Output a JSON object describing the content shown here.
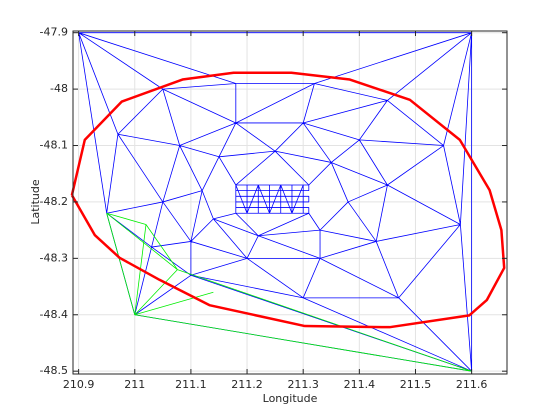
{
  "chart_data": {
    "type": "line",
    "xlabel": "Longitude",
    "ylabel": "Latitude",
    "xlim": [
      210.89,
      211.663
    ],
    "ylim": [
      -48.505,
      -47.897
    ],
    "xticks": [
      210.9,
      211,
      211.1,
      211.2,
      211.3,
      211.4,
      211.5,
      211.6
    ],
    "yticks": [
      -47.9,
      -48,
      -48.1,
      -48.2,
      -48.3,
      -48.4,
      -48.5
    ],
    "grid": true,
    "series": [
      {
        "color": "#0000ff",
        "x": [
          210.9,
          211.6,
          211.6,
          211.0,
          210.95,
          210.9,
          null,
          210.95,
          210.97,
          211.05,
          211.18,
          211.32,
          211.45,
          211.55,
          211.58,
          211.47,
          211.3,
          211.1,
          211.03,
          210.95,
          null,
          210.95,
          211.05,
          210.97,
          211.08,
          211.05,
          211.18,
          211.18,
          211.18,
          211.32,
          211.3,
          211.45,
          211.4,
          211.55,
          211.45,
          211.58,
          211.43,
          211.47,
          211.33,
          211.3,
          211.2,
          211.1,
          211.1,
          211.03,
          211.05,
          null,
          211.05,
          211.08,
          211.18,
          211.3,
          211.4,
          211.45,
          211.43,
          211.33,
          211.2,
          211.1,
          211.05,
          null,
          211.05,
          211.12,
          211.08,
          211.15,
          211.18,
          211.25,
          211.3,
          211.35,
          211.4,
          211.35,
          211.45,
          211.38,
          211.43,
          211.33,
          211.33,
          211.22,
          211.2,
          211.14,
          211.1,
          211.12,
          null,
          211.12,
          211.15,
          211.25,
          211.35,
          211.38,
          211.33,
          211.22,
          211.14,
          211.12,
          null,
          210.97,
          210.9,
          211.05,
          210.9,
          211.18,
          null,
          211.32,
          211.6,
          211.45,
          211.6,
          211.55,
          211.6,
          211.58,
          null,
          211.58,
          211.6,
          211.47,
          211.6,
          211.3,
          211.6,
          211.1,
          null,
          211.1,
          211.0,
          211.03,
          null,
          211.18,
          211.31,
          211.31,
          211.18,
          211.18,
          211.31,
          211.31,
          211.18,
          211.18,
          211.31,
          211.31,
          211.18,
          null,
          211.18,
          211.18,
          211.2,
          211.2,
          211.22,
          211.22,
          211.24,
          211.24,
          211.26,
          211.26,
          211.28,
          211.28,
          211.3,
          211.3,
          null,
          211.18,
          211.2,
          211.22,
          211.24,
          211.26,
          211.28,
          211.3,
          null,
          211.15,
          211.18,
          211.25,
          211.31,
          211.35,
          null,
          211.33,
          211.31,
          211.22,
          211.18,
          211.14
        ],
        "y": [
          -47.9,
          -47.9,
          -48.5,
          -48.4,
          -48.22,
          -47.9,
          null,
          -48.22,
          -48.08,
          -48.0,
          -47.99,
          -47.99,
          -48.02,
          -48.1,
          -48.24,
          -48.37,
          -48.37,
          -48.33,
          -48.28,
          -48.22,
          null,
          -48.22,
          -48.2,
          -48.08,
          -48.1,
          -48.0,
          -48.06,
          -47.99,
          -48.06,
          -47.99,
          -48.06,
          -48.02,
          -48.09,
          -48.1,
          -48.17,
          -48.24,
          -48.27,
          -48.37,
          -48.3,
          -48.37,
          -48.3,
          -48.33,
          -48.27,
          -48.28,
          -48.2,
          null,
          -48.2,
          -48.1,
          -48.06,
          -48.06,
          -48.09,
          -48.17,
          -48.27,
          -48.3,
          -48.3,
          -48.27,
          -48.2,
          null,
          -48.2,
          -48.18,
          -48.1,
          -48.12,
          -48.06,
          -48.11,
          -48.06,
          -48.13,
          -48.09,
          -48.13,
          -48.17,
          -48.2,
          -48.27,
          -48.25,
          -48.3,
          -48.26,
          -48.3,
          -48.23,
          -48.27,
          -48.18,
          null,
          -48.18,
          -48.12,
          -48.11,
          -48.13,
          -48.2,
          -48.25,
          -48.26,
          -48.23,
          -48.18,
          null,
          -48.08,
          -47.9,
          -48.0,
          -47.9,
          -47.99,
          null,
          -47.99,
          -47.9,
          -48.02,
          -47.9,
          -48.1,
          -47.9,
          -48.24,
          null,
          -48.24,
          -48.5,
          -48.37,
          -48.5,
          -48.37,
          -48.5,
          -48.33,
          null,
          -48.33,
          -48.4,
          -48.28,
          null,
          -48.17,
          -48.17,
          -48.18,
          -48.18,
          -48.19,
          -48.19,
          -48.2,
          -48.2,
          -48.21,
          -48.21,
          -48.22,
          -48.22,
          null,
          -48.17,
          -48.22,
          -48.22,
          -48.17,
          -48.17,
          -48.22,
          -48.22,
          -48.17,
          -48.17,
          -48.22,
          -48.22,
          -48.17,
          -48.17,
          -48.22,
          null,
          -48.17,
          -48.22,
          -48.17,
          -48.22,
          -48.17,
          -48.22,
          -48.17,
          null,
          -48.12,
          -48.17,
          -48.11,
          -48.17,
          -48.13,
          null,
          -48.25,
          -48.22,
          -48.26,
          -48.22,
          -48.23
        ]
      },
      {
        "color": "#00ee00",
        "x": [
          210.95,
          211.0,
          211.6,
          211.076,
          210.95,
          null,
          211.02,
          211.0,
          211.076,
          211.02,
          210.95,
          null,
          211.0,
          211.14
        ],
        "y": [
          -48.22,
          -48.4,
          -48.5,
          -48.32,
          -48.22,
          null,
          -48.24,
          -48.4,
          -48.32,
          -48.24,
          -48.22,
          null,
          -48.4,
          -48.36
        ]
      },
      {
        "color": "#ff0000",
        "width": 2.5,
        "x": [
          210.888,
          210.911,
          210.977,
          211.085,
          211.176,
          211.279,
          211.383,
          211.49,
          211.579,
          211.632,
          211.653,
          211.658,
          211.627,
          211.596,
          211.454,
          211.303,
          211.133,
          211.044,
          210.973,
          210.929,
          210.888
        ],
        "y": [
          -48.188,
          -48.09,
          -48.022,
          -47.983,
          -47.971,
          -47.971,
          -47.983,
          -48.019,
          -48.09,
          -48.179,
          -48.25,
          -48.317,
          -48.374,
          -48.401,
          -48.422,
          -48.42,
          -48.383,
          -48.338,
          -48.299,
          -48.259,
          -48.188
        ]
      }
    ]
  }
}
